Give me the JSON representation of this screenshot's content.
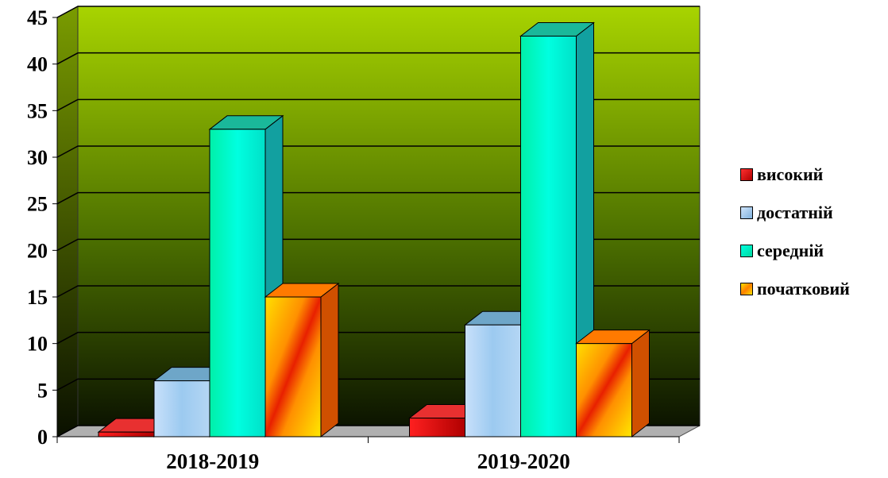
{
  "chart_data": {
    "type": "bar",
    "categories": [
      "2018-2019",
      "2019-2020"
    ],
    "series": [
      {
        "name": "високий",
        "values": [
          0.5,
          2
        ],
        "color": "#e00000"
      },
      {
        "name": "достатній",
        "values": [
          6,
          12
        ],
        "color": "#a6caf0"
      },
      {
        "name": "середній",
        "values": [
          33,
          43
        ],
        "color": "#00ffcc"
      },
      {
        "name": "початковий",
        "values": [
          15,
          10
        ],
        "color": "#ffcc00"
      }
    ],
    "ylim": [
      0,
      45
    ],
    "yticks": [
      0,
      5,
      10,
      15,
      20,
      25,
      30,
      35,
      40,
      45
    ],
    "grid": true,
    "legend_position": "right",
    "style": "3d-clustered",
    "background_color_top": "#a8d400",
    "background_color_bottom": "#101800"
  }
}
